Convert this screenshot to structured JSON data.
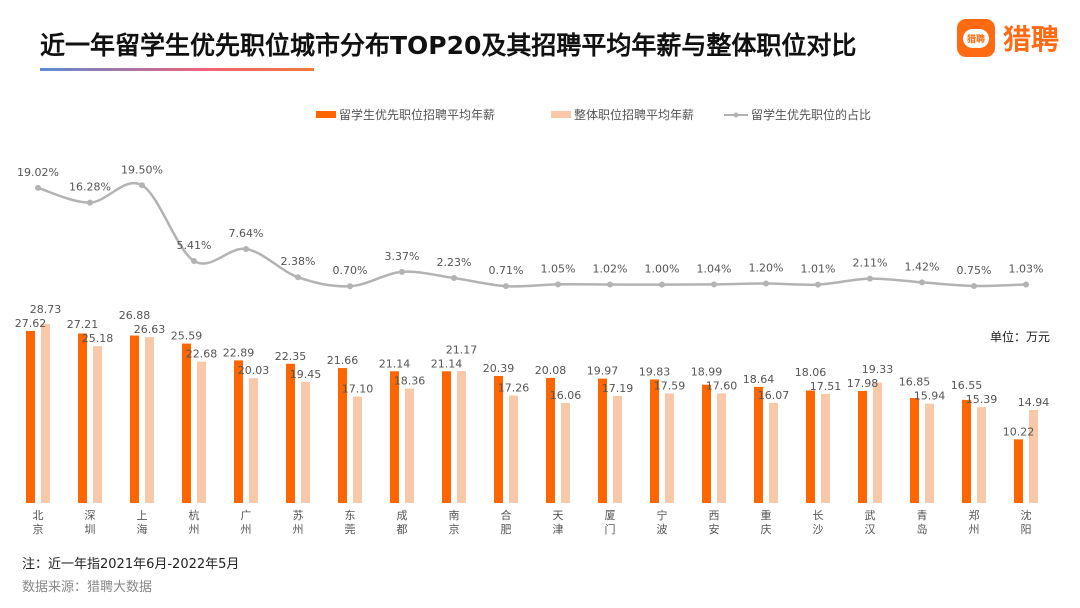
{
  "header": {
    "title": "近一年留学生优先职位城市分布TOP20及其招聘平均年薪与整体职位对比",
    "logo_text": "猎聘"
  },
  "footer": {
    "note": "注：近一年指2021年6月-2022年5月",
    "source": "数据来源：猎聘大数据"
  },
  "chart_data": {
    "type": "bar",
    "unit_label": "单位：万元",
    "legend_position": "top",
    "grid": false,
    "categories": [
      "北京",
      "深圳",
      "上海",
      "杭州",
      "广州",
      "苏州",
      "东莞",
      "成都",
      "南京",
      "合肥",
      "天津",
      "厦门",
      "宁波",
      "西安",
      "重庆",
      "长沙",
      "武汉",
      "青岛",
      "郑州",
      "沈阳"
    ],
    "series": [
      {
        "name": "留学生优先职位招聘平均年薪",
        "type": "bar",
        "color": "#ff6600",
        "values": [
          27.62,
          27.21,
          26.88,
          25.59,
          22.89,
          22.35,
          21.66,
          21.14,
          21.14,
          20.39,
          20.08,
          19.97,
          19.83,
          18.99,
          18.64,
          18.06,
          17.98,
          16.85,
          16.55,
          10.22
        ]
      },
      {
        "name": "整体职位招聘平均年薪",
        "type": "bar",
        "color": "#f9c8a8",
        "values": [
          28.73,
          25.18,
          26.63,
          22.68,
          20.03,
          19.45,
          17.1,
          18.36,
          21.17,
          17.26,
          16.06,
          17.19,
          17.59,
          17.6,
          16.07,
          17.51,
          19.33,
          15.94,
          15.39,
          14.94
        ]
      },
      {
        "name": "留学生优先职位的占比",
        "type": "line",
        "color": "#b3b3b3",
        "unit": "%",
        "values": [
          19.02,
          16.28,
          19.5,
          5.41,
          7.64,
          2.38,
          0.7,
          3.37,
          2.23,
          0.71,
          1.05,
          1.02,
          1.0,
          1.04,
          1.2,
          1.01,
          2.11,
          1.42,
          0.75,
          1.03
        ]
      }
    ]
  }
}
